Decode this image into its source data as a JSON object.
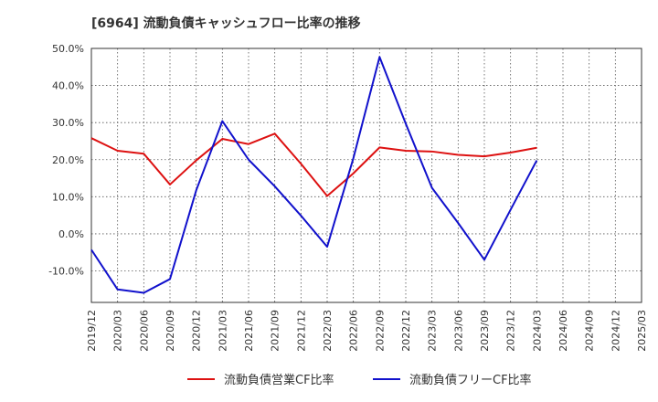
{
  "chart_data": {
    "type": "line",
    "title": "[6964]  流動負債キャッシュフロー比率の推移",
    "xlabel": "",
    "ylabel": "",
    "x": [
      "2019/12",
      "2020/03",
      "2020/06",
      "2020/09",
      "2020/12",
      "2021/03",
      "2021/06",
      "2021/09",
      "2021/12",
      "2022/03",
      "2022/06",
      "2022/09",
      "2022/12",
      "2023/03",
      "2023/06",
      "2023/09",
      "2023/12",
      "2024/03",
      "2024/06",
      "2024/09",
      "2024/12",
      "2025/03"
    ],
    "ylim": [
      -18.5,
      50
    ],
    "yticks": [
      -10,
      0,
      10,
      20,
      30,
      40,
      50
    ],
    "ytick_labels": [
      "-10.0%",
      "0.0%",
      "10.0%",
      "20.0%",
      "30.0%",
      "40.0%",
      "50.0%"
    ],
    "grid": true,
    "legend_position": "bottom",
    "series": [
      {
        "name": "流動負債営業CF比率",
        "color": "#dd1111",
        "values": [
          25.8,
          22.4,
          21.6,
          13.3,
          19.8,
          25.6,
          24.2,
          27.0,
          18.9,
          10.2,
          16.3,
          23.3,
          22.4,
          22.2,
          21.3,
          20.9,
          21.9,
          23.2,
          null,
          null,
          null,
          null
        ]
      },
      {
        "name": "流動負債フリーCF比率",
        "color": "#1111cc",
        "values": [
          -4.3,
          -15.0,
          -15.9,
          -12.2,
          11.7,
          30.4,
          20.0,
          12.8,
          4.9,
          -3.5,
          20.4,
          47.7,
          29.7,
          12.4,
          2.9,
          -7.0,
          6.5,
          19.8,
          null,
          null,
          null,
          null
        ]
      }
    ]
  }
}
